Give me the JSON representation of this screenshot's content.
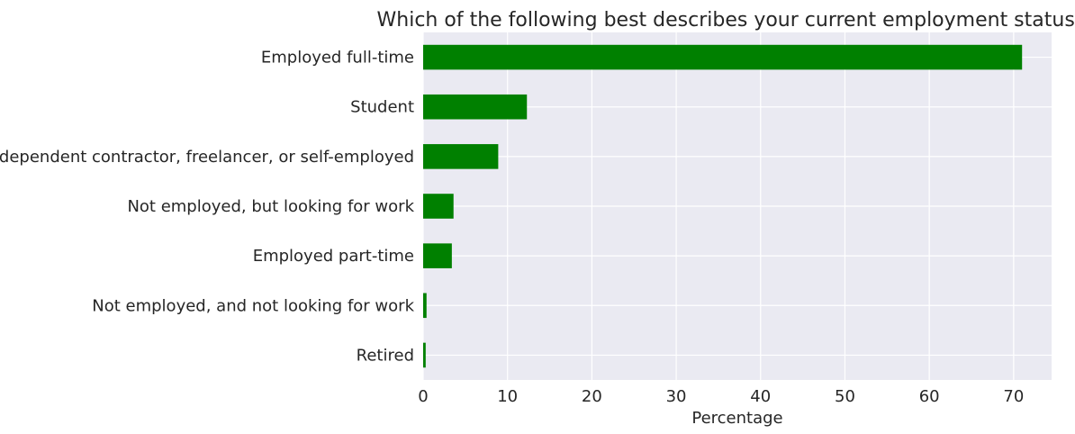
{
  "chart_data": {
    "type": "bar",
    "orientation": "horizontal",
    "title": "Which of the following best describes your current employment status?",
    "xlabel": "Percentage",
    "ylabel": "",
    "categories": [
      "Employed full-time",
      "Student",
      "Independent contractor, freelancer, or self-employed",
      "Not employed, but looking for work",
      "Employed part-time",
      "Not employed, and not looking for work",
      "Retired"
    ],
    "values": [
      71.0,
      12.3,
      8.9,
      3.6,
      3.4,
      0.4,
      0.3
    ],
    "xlim": [
      0,
      74.5
    ],
    "xticks": [
      0,
      10,
      20,
      30,
      40,
      50,
      60,
      70
    ],
    "grid": true,
    "colors": {
      "bar": "#008000",
      "plot_background": "#eaeaf2",
      "grid": "#ffffff",
      "text": "#262626"
    }
  }
}
